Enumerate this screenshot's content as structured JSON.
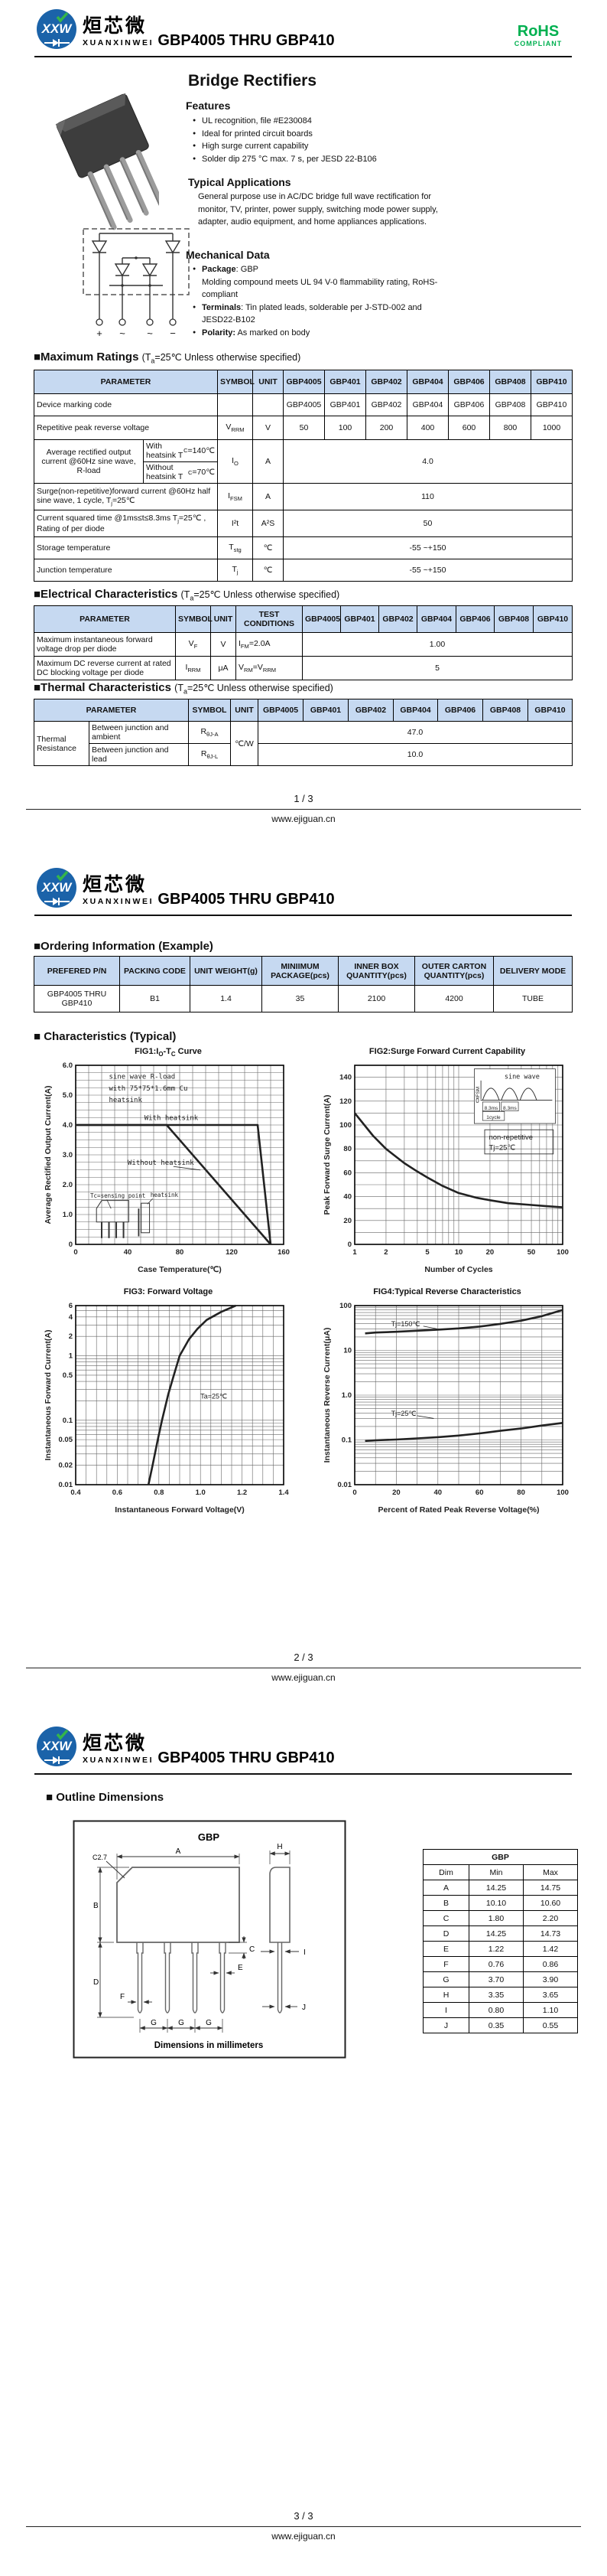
{
  "brand": {
    "logo_monogram": "XXW",
    "logo_cn": "烜芯微",
    "logo_en": "XUANXINWEI",
    "doc_title": "GBP4005 THRU GBP410",
    "website": "www.ejiguan.cn",
    "rohs_label": "RoHS",
    "rohs_sub": "COMPLIANT",
    "colors": {
      "logo_blue": "#1b63a9",
      "rohs_green": "#00b050",
      "table_header_bg": "#c6d9f1"
    }
  },
  "labels": {
    "parameter": "PARAMETER",
    "symbol": "SYMBOL",
    "unit": "UNIT",
    "test_conditions": "TEST CONDITIONS"
  },
  "devices": [
    "GBP4005",
    "GBP401",
    "GBP402",
    "GBP404",
    "GBP406",
    "GBP408",
    "GBP410"
  ],
  "section_condition": [
    "(T",
    "a",
    "=25℃ Unless otherwise specified)"
  ],
  "page1": {
    "product_title": "Bridge Rectifiers",
    "features": {
      "heading": "Features",
      "items": [
        "UL recognition, file #E230084",
        "Ideal for printed circuit boards",
        "High surge current capability",
        "Solder dip 275 °C max. 7 s, per JESD 22-B106"
      ]
    },
    "applications": {
      "heading": "Typical Applications",
      "body": "General purpose use in AC/DC bridge full wave rectification for monitor, TV, printer, power supply, switching mode power supply, adapter, audio equipment, and home appliances applications."
    },
    "mechanical": {
      "heading": "Mechanical Data",
      "item1_label": "Package",
      "item1_text": ": GBP",
      "item2_text": "Molding compound meets UL 94 V-0 flammability rating, RoHS-compliant",
      "item3_label": "Terminals",
      "item3_text": ": Tin plated leads, solderable  per J-STD-002 and JESD22-B102",
      "item4_label": "Polarity:",
      "item4_text": " As marked on body"
    },
    "schematic_pins": [
      "+",
      "~",
      "~",
      "−"
    ],
    "max_ratings": {
      "heading": "■Maximum Ratings",
      "marking_row": {
        "param": "Device marking code",
        "values": [
          "GBP4005",
          "GBP401",
          "GBP402",
          "GBP404",
          "GBP406",
          "GBP408",
          "GBP410"
        ]
      },
      "vrrm_row": {
        "param": "Repetitive peak reverse voltage",
        "sym": [
          "V",
          "RRM"
        ],
        "unit": "V",
        "values": [
          "50",
          "100",
          "200",
          "400",
          "600",
          "800",
          "1000"
        ]
      },
      "io_row": {
        "param": "Average rectified output current @60Hz sine wave, R-load",
        "sub1": [
          "With heatsink T",
          "C",
          " =140℃"
        ],
        "sub2": [
          "Without heatsink T",
          "C",
          " =70℃"
        ],
        "sym": [
          "I",
          "O"
        ],
        "unit": "A",
        "value": "4.0"
      },
      "ifsm_row": {
        "param": [
          "Surge(non-repetitive)forward current @60Hz half sine wave, 1 cycle, T",
          "j",
          "=25℃"
        ],
        "sym": [
          "I",
          "FSM"
        ],
        "unit": "A",
        "value": "110"
      },
      "i2t_row": {
        "param": [
          "Current squared time @1ms≤t≤8.3ms T",
          "j",
          "=25℃ , Rating of per diode"
        ],
        "sym": [
          "I²t"
        ],
        "unit": "A²S",
        "value": "50"
      },
      "tstg_row": {
        "param": "Storage temperature",
        "sym": [
          "T",
          "stg"
        ],
        "unit": "℃",
        "value": "-55 ~+150"
      },
      "tj_row": {
        "param": "Junction temperature",
        "sym": [
          "T",
          "j"
        ],
        "unit": "℃",
        "value": "-55 ~+150"
      }
    },
    "electrical": {
      "heading": "■Electrical Characteristics",
      "vf_row": {
        "param": "Maximum instantaneous forward voltage drop per diode",
        "sym": [
          "V",
          "F"
        ],
        "unit": "V",
        "test": [
          "I",
          "FM",
          "=2.0A"
        ],
        "value": "1.00"
      },
      "ir_row": {
        "param": "Maximum DC reverse current at rated DC blocking voltage per diode",
        "sym": [
          "I",
          "RRM"
        ],
        "unit": "μA",
        "test": [
          "V",
          "RM",
          "=V",
          "RRM"
        ],
        "value": "5"
      }
    },
    "thermal": {
      "heading": "■Thermal Characteristics",
      "group": "Thermal Resistance",
      "r1": {
        "param": "Between junction and ambient",
        "sym": [
          "R",
          "θJ-A"
        ],
        "value": "47.0"
      },
      "r2": {
        "param": "Between junction and lead",
        "sym": [
          "R",
          "θJ-L"
        ],
        "value": "10.0"
      },
      "unit": "℃/W"
    },
    "page_num": "1 / 3"
  },
  "page2": {
    "ordering": {
      "heading": "■Ordering Information (Example)",
      "headers": [
        "PREFERED P/N",
        "PACKING CODE",
        "UNIT WEIGHT(g)",
        "MINIIMUM PACKAGE(pcs)",
        "INNER BOX QUANTITY(pcs)",
        "OUTER CARTON QUANTITY(pcs)",
        "DELIVERY MODE"
      ],
      "row": [
        "GBP4005 THRU GBP410",
        "B1",
        "1.4",
        "35",
        "2100",
        "4200",
        "TUBE"
      ]
    },
    "characteristics_heading": "■ Characteristics (Typical)",
    "fig1_title_segs": [
      "FIG1:I",
      "O",
      "-T",
      "C",
      " Curve"
    ],
    "fig2_title": "FIG2:Surge Forward Current Capability",
    "fig3_title": "FIG3: Forward Voltage",
    "fig4_title": "FIG4:Typical Reverse Characteristics",
    "page_num": "2 / 3"
  },
  "page3": {
    "outline_heading": "■ Outline Dimensions",
    "drawing": {
      "package_label": "GBP",
      "chamfer_label": "C2.7",
      "dims": [
        "A",
        "B",
        "C",
        "D",
        "E",
        "F",
        "G",
        "H",
        "I",
        "J"
      ],
      "caption": "Dimensions in millimeters"
    },
    "dim_table": {
      "title": "GBP",
      "headers": [
        "Dim",
        "Min",
        "Max"
      ],
      "rows": [
        [
          "A",
          "14.25",
          "14.75"
        ],
        [
          "B",
          "10.10",
          "10.60"
        ],
        [
          "C",
          "1.80",
          "2.20"
        ],
        [
          "D",
          "14.25",
          "14.73"
        ],
        [
          "E",
          "1.22",
          "1.42"
        ],
        [
          "F",
          "0.76",
          "0.86"
        ],
        [
          "G",
          "3.70",
          "3.90"
        ],
        [
          "H",
          "3.35",
          "3.65"
        ],
        [
          "I",
          "0.80",
          "1.10"
        ],
        [
          "J",
          "0.35",
          "0.55"
        ]
      ]
    },
    "page_num": "3 / 3"
  },
  "chart_data": [
    {
      "id": "fig1",
      "type": "line",
      "title": "FIG1:Io-Tc Curve",
      "xlabel": "Case Temperature(℃)",
      "ylabel": "Average Rectified Output Current(A)",
      "x": {
        "min": 0,
        "max": 160,
        "step": 10,
        "labels": [
          [
            0,
            "0"
          ],
          [
            40,
            "40"
          ],
          [
            80,
            "80"
          ],
          [
            120,
            "120"
          ],
          [
            160,
            "160"
          ]
        ]
      },
      "y": {
        "min": 0,
        "max": 6,
        "step": 0.25,
        "labels": [
          [
            0,
            "0"
          ],
          [
            1,
            "1.0"
          ],
          [
            2,
            "2.0"
          ],
          [
            3,
            "3.0"
          ],
          [
            4,
            "4.0"
          ],
          [
            5,
            "5.0"
          ],
          [
            6,
            "6.0"
          ]
        ]
      },
      "series": [
        {
          "name": "With heatsink",
          "points": [
            [
              0,
              4
            ],
            [
              140,
              4
            ],
            [
              150,
              0
            ]
          ]
        },
        {
          "name": "Without heatsink",
          "points": [
            [
              0,
              4
            ],
            [
              70,
              4
            ],
            [
              150,
              0
            ]
          ]
        }
      ],
      "annos": [
        {
          "text": "sine wave R-load",
          "fx": 0.16,
          "fy": 0.075,
          "mono": true
        },
        {
          "text": "with 75*75*1.6mm Cu",
          "fx": 0.16,
          "fy": 0.14,
          "mono": true
        },
        {
          "text": "heatsink",
          "fx": 0.16,
          "fy": 0.205,
          "mono": true
        },
        {
          "text": "With heatsink",
          "fx": 0.33,
          "fy": 0.305,
          "mono": true
        },
        {
          "text": "Without heatsink",
          "fx": 0.25,
          "fy": 0.555,
          "mono": true,
          "line": [
            0.47,
            0.565,
            0.6,
            0.585
          ]
        }
      ],
      "deco": "tc_inset",
      "inset_labels": {
        "sense": "Tc=sensing point",
        "heatsink": "heatsink"
      }
    },
    {
      "id": "fig2",
      "type": "line",
      "title": "FIG2:Surge Forward Current Capability",
      "xlabel": "Number of Cycles",
      "ylabel": "Peak Forward Surge Current(A)",
      "x": {
        "min": 1,
        "max": 100,
        "log": true,
        "labels": [
          [
            1,
            "1"
          ],
          [
            2,
            "2"
          ],
          [
            5,
            "5"
          ],
          [
            10,
            "10"
          ],
          [
            20,
            "20"
          ],
          [
            50,
            "50"
          ],
          [
            100,
            "100"
          ]
        ]
      },
      "y": {
        "min": 0,
        "max": 150,
        "step": 10,
        "labels": [
          [
            0,
            "0"
          ],
          [
            20,
            "20"
          ],
          [
            40,
            "40"
          ],
          [
            60,
            "60"
          ],
          [
            80,
            "80"
          ],
          [
            100,
            "100"
          ],
          [
            120,
            "120"
          ],
          [
            140,
            "140"
          ]
        ]
      },
      "series": [
        {
          "name": "surge",
          "points": [
            [
              1,
              110
            ],
            [
              1.5,
              91
            ],
            [
              2,
              80
            ],
            [
              3,
              68
            ],
            [
              4,
              61
            ],
            [
              5,
              56
            ],
            [
              7,
              49
            ],
            [
              10,
              43
            ],
            [
              15,
              39
            ],
            [
              20,
              37
            ],
            [
              30,
              34.5
            ],
            [
              50,
              33
            ],
            [
              70,
              32
            ],
            [
              100,
              31
            ]
          ]
        }
      ],
      "annos": [],
      "deco": "surge_inset",
      "inset_labels": {
        "title": "sine wave",
        "ifsm": "IFSM",
        "t1": "8.3ms",
        "t2": "8.3ms",
        "cycle": "1cycle",
        "note1": "non-repetitive",
        "note2": "Tj=25℃",
        "zero": "0"
      }
    },
    {
      "id": "fig3",
      "type": "line",
      "title": "FIG3: Forward Voltage",
      "xlabel": "Instantaneous Forward Voltage(V)",
      "ylabel": "Instantaneous Forward Current(A)",
      "x": {
        "min": 0.4,
        "max": 1.4,
        "step": 0.05,
        "labels": [
          [
            0.4,
            "0.4"
          ],
          [
            0.6,
            "0.6"
          ],
          [
            0.8,
            "0.8"
          ],
          [
            1,
            "1.0"
          ],
          [
            1.2,
            "1.2"
          ],
          [
            1.4,
            "1.4"
          ]
        ]
      },
      "y": {
        "min": 0.01,
        "max": 6,
        "log": true,
        "labels": [
          [
            0.01,
            "0.01"
          ],
          [
            0.02,
            "0.02"
          ],
          [
            0.05,
            "0.05"
          ],
          [
            0.1,
            "0.1"
          ],
          [
            0.5,
            "0.5"
          ],
          [
            1,
            "1"
          ],
          [
            2,
            "2"
          ],
          [
            4,
            "4"
          ],
          [
            6,
            "6"
          ]
        ]
      },
      "series": [
        {
          "name": "VF",
          "points": [
            [
              0.75,
              0.01
            ],
            [
              0.77,
              0.02
            ],
            [
              0.795,
              0.05
            ],
            [
              0.815,
              0.1
            ],
            [
              0.845,
              0.25
            ],
            [
              0.872,
              0.5
            ],
            [
              0.9,
              1
            ],
            [
              0.945,
              1.8
            ],
            [
              0.985,
              2.6
            ],
            [
              1.03,
              3.6
            ],
            [
              1.1,
              4.8
            ],
            [
              1.17,
              6
            ]
          ]
        }
      ],
      "annos": [
        {
          "text": "Ta=25℃",
          "fx": 0.6,
          "fy": 0.52
        }
      ]
    },
    {
      "id": "fig4",
      "type": "line",
      "title": "FIG4:Typical Reverse Characteristics",
      "xlabel": "Percent of Rated Peak Reverse Voltage(%)",
      "ylabel": "Instantaneous Reverse Current(μA)",
      "x": {
        "min": 0,
        "max": 100,
        "step": 10,
        "labels": [
          [
            0,
            "0"
          ],
          [
            20,
            "20"
          ],
          [
            40,
            "40"
          ],
          [
            60,
            "60"
          ],
          [
            80,
            "80"
          ],
          [
            100,
            "100"
          ]
        ]
      },
      "y": {
        "min": 0.01,
        "max": 100,
        "log": true,
        "labels": [
          [
            0.01,
            "0.01"
          ],
          [
            0.1,
            "0.1"
          ],
          [
            1,
            "1.0"
          ],
          [
            10,
            "10"
          ],
          [
            100,
            "100"
          ]
        ]
      },
      "series": [
        {
          "name": "Tj=150C",
          "points": [
            [
              5,
              24
            ],
            [
              10,
              25
            ],
            [
              20,
              26
            ],
            [
              30,
              27.5
            ],
            [
              40,
              29
            ],
            [
              50,
              31
            ],
            [
              60,
              34
            ],
            [
              70,
              39
            ],
            [
              80,
              46
            ],
            [
              90,
              58
            ],
            [
              100,
              80
            ]
          ]
        },
        {
          "name": "Tj=25C",
          "points": [
            [
              5,
              0.095
            ],
            [
              10,
              0.098
            ],
            [
              20,
              0.102
            ],
            [
              30,
              0.108
            ],
            [
              40,
              0.115
            ],
            [
              50,
              0.125
            ],
            [
              60,
              0.14
            ],
            [
              70,
              0.16
            ],
            [
              80,
              0.18
            ],
            [
              90,
              0.21
            ],
            [
              100,
              0.24
            ]
          ]
        }
      ],
      "annos": [
        {
          "text": "Tj=150℃",
          "fx": 0.175,
          "fy": 0.115,
          "line": [
            0.33,
            0.115,
            0.42,
            0.135
          ]
        },
        {
          "text": "Tj=25℃",
          "fx": 0.175,
          "fy": 0.615,
          "line": [
            0.3,
            0.615,
            0.38,
            0.63
          ]
        }
      ]
    }
  ]
}
